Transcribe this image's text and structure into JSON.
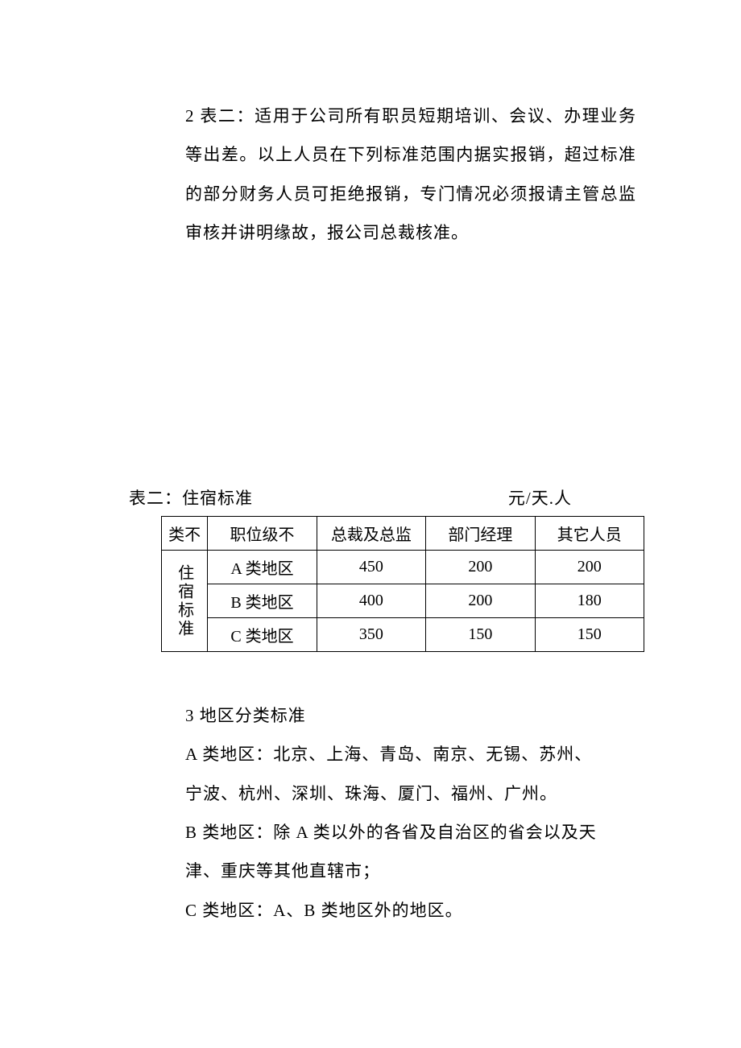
{
  "paragraph1": {
    "text": "2 表二：适用于公司所有职员短期培训、会议、办理业务等出差。以上人员在下列标准范围内据实报销，超过标准的部分财务人员可拒绝报销，专门情况必须报请主管总监审核并讲明缘故，报公司总裁核准。"
  },
  "tableTitle": {
    "left": "表二：住宿标准",
    "right": "元/天.人"
  },
  "table": {
    "headers": {
      "category": "类不",
      "position": "职位级不",
      "col1": "总裁及总监",
      "col2": "部门经理",
      "col3": "其它人员"
    },
    "rowSpanLabel": "住宿标准",
    "rows": [
      {
        "region": "A 类地区",
        "v1": "450",
        "v2": "200",
        "v3": "200"
      },
      {
        "region": "B 类地区",
        "v1": "400",
        "v2": "200",
        "v3": "180"
      },
      {
        "region": "C 类地区",
        "v1": "350",
        "v2": "150",
        "v3": "150"
      }
    ]
  },
  "paragraph2": {
    "line1": "3 地区分类标准",
    "line2": "A 类地区：北京、上海、青岛、南京、无锡、苏州、",
    "line3": "宁波、杭州、深圳、珠海、厦门、福州、广州。",
    "line4": "B 类地区：除 A 类以外的各省及自治区的省会以及天",
    "line5": "津、重庆等其他直辖市；",
    "line6": "C 类地区：A、B 类地区外的地区。"
  },
  "styling": {
    "background_color": "#ffffff",
    "text_color": "#000000",
    "border_color": "#000000",
    "font_family": "SimSun",
    "body_fontsize": 21,
    "table_fontsize": 20,
    "line_height": 2.3
  }
}
